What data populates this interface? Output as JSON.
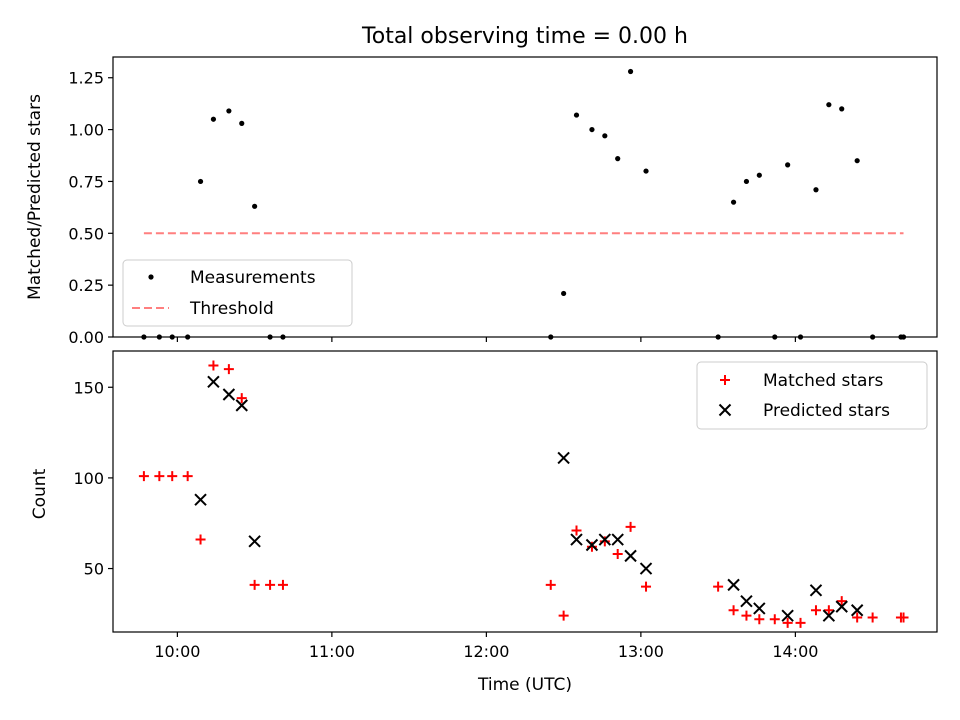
{
  "chart_data": [
    {
      "type": "scatter",
      "title": "Total observing time = 0.00 h",
      "ylabel": "Matched/Predicted stars",
      "xlim": [
        "09:35",
        "14:55"
      ],
      "ylim": [
        0,
        1.35
      ],
      "y_ticks": [
        0.0,
        0.25,
        0.5,
        0.75,
        1.0,
        1.25
      ],
      "y_tick_labels": [
        "0.00",
        "0.25",
        "0.50",
        "0.75",
        "1.00",
        "1.25"
      ],
      "legend_position": "lower-left",
      "series": [
        {
          "name": "Measurements",
          "marker": "dot",
          "color": "#000000",
          "points": [
            [
              "09:47",
              0.0
            ],
            [
              "09:53",
              0.0
            ],
            [
              "09:58",
              0.0
            ],
            [
              "10:04",
              0.0
            ],
            [
              "10:09",
              0.75
            ],
            [
              "10:14",
              1.05
            ],
            [
              "10:20",
              1.09
            ],
            [
              "10:25",
              1.03
            ],
            [
              "10:30",
              0.63
            ],
            [
              "10:36",
              0.0
            ],
            [
              "10:41",
              0.0
            ],
            [
              "12:25",
              0.0
            ],
            [
              "12:30",
              0.21
            ],
            [
              "12:35",
              1.07
            ],
            [
              "12:41",
              1.0
            ],
            [
              "12:46",
              0.97
            ],
            [
              "12:51",
              0.86
            ],
            [
              "12:56",
              1.28
            ],
            [
              "13:02",
              0.8
            ],
            [
              "13:30",
              0.0
            ],
            [
              "13:36",
              0.65
            ],
            [
              "13:41",
              0.75
            ],
            [
              "13:46",
              0.78
            ],
            [
              "13:52",
              0.0
            ],
            [
              "13:57",
              0.83
            ],
            [
              "14:02",
              0.0
            ],
            [
              "14:08",
              0.71
            ],
            [
              "14:13",
              1.12
            ],
            [
              "14:18",
              1.1
            ],
            [
              "14:24",
              0.85
            ],
            [
              "14:30",
              0.0
            ],
            [
              "14:41",
              0.0
            ],
            [
              "14:42",
              0.0
            ]
          ]
        },
        {
          "name": "Threshold",
          "style": "dashed",
          "color": "#ff7f7f",
          "points": [
            [
              "09:47",
              0.5
            ],
            [
              "14:42",
              0.5
            ]
          ]
        }
      ]
    },
    {
      "type": "scatter",
      "xlabel": "Time (UTC)",
      "ylabel": "Count",
      "xlim": [
        "09:35",
        "14:55"
      ],
      "ylim": [
        15,
        170
      ],
      "x_ticks": [
        "10:00",
        "11:00",
        "12:00",
        "13:00",
        "14:00"
      ],
      "x_tick_labels": [
        "10:00",
        "11:00",
        "12:00",
        "13:00",
        "14:00"
      ],
      "y_ticks": [
        50,
        100,
        150
      ],
      "y_tick_labels": [
        "50",
        "100",
        "150"
      ],
      "legend_position": "upper-right",
      "series": [
        {
          "name": "Matched stars",
          "marker": "plus",
          "color": "#ff0000",
          "points": [
            [
              "09:47",
              101
            ],
            [
              "09:53",
              101
            ],
            [
              "09:58",
              101
            ],
            [
              "10:04",
              101
            ],
            [
              "10:09",
              66
            ],
            [
              "10:14",
              162
            ],
            [
              "10:20",
              160
            ],
            [
              "10:25",
              144
            ],
            [
              "10:30",
              41
            ],
            [
              "10:36",
              41
            ],
            [
              "10:41",
              41
            ],
            [
              "12:25",
              41
            ],
            [
              "12:30",
              24
            ],
            [
              "12:35",
              71
            ],
            [
              "12:41",
              62
            ],
            [
              "12:46",
              65
            ],
            [
              "12:51",
              58
            ],
            [
              "12:56",
              73
            ],
            [
              "13:02",
              40
            ],
            [
              "13:30",
              40
            ],
            [
              "13:36",
              27
            ],
            [
              "13:41",
              24
            ],
            [
              "13:46",
              22
            ],
            [
              "13:52",
              22
            ],
            [
              "13:57",
              20
            ],
            [
              "14:02",
              20
            ],
            [
              "14:08",
              27
            ],
            [
              "14:13",
              27
            ],
            [
              "14:18",
              32
            ],
            [
              "14:24",
              23
            ],
            [
              "14:30",
              23
            ],
            [
              "14:41",
              23
            ],
            [
              "14:42",
              23
            ]
          ]
        },
        {
          "name": "Predicted stars",
          "marker": "x",
          "color": "#000000",
          "points": [
            [
              "10:09",
              88
            ],
            [
              "10:14",
              153
            ],
            [
              "10:20",
              146
            ],
            [
              "10:25",
              140
            ],
            [
              "10:30",
              65
            ],
            [
              "12:30",
              111
            ],
            [
              "12:35",
              66
            ],
            [
              "12:41",
              63
            ],
            [
              "12:46",
              66
            ],
            [
              "12:51",
              66
            ],
            [
              "12:56",
              57
            ],
            [
              "13:02",
              50
            ],
            [
              "13:36",
              41
            ],
            [
              "13:41",
              32
            ],
            [
              "13:46",
              28
            ],
            [
              "13:57",
              24
            ],
            [
              "14:08",
              38
            ],
            [
              "14:13",
              24
            ],
            [
              "14:18",
              29
            ],
            [
              "14:24",
              27
            ]
          ]
        }
      ]
    }
  ]
}
